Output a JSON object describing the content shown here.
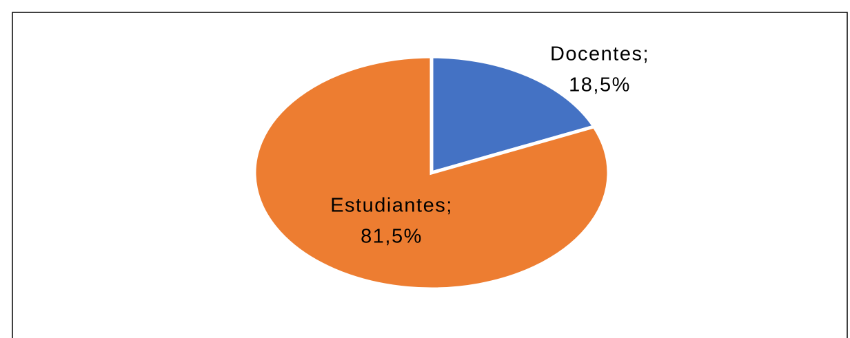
{
  "chart_data": {
    "type": "pie",
    "categories": [
      "Docentes;",
      "Estudiantes;"
    ],
    "values": [
      18.5,
      81.5
    ],
    "value_labels": [
      "18,5%",
      "81,5%"
    ],
    "colors": [
      "#4472c4",
      "#ed7d31"
    ]
  }
}
